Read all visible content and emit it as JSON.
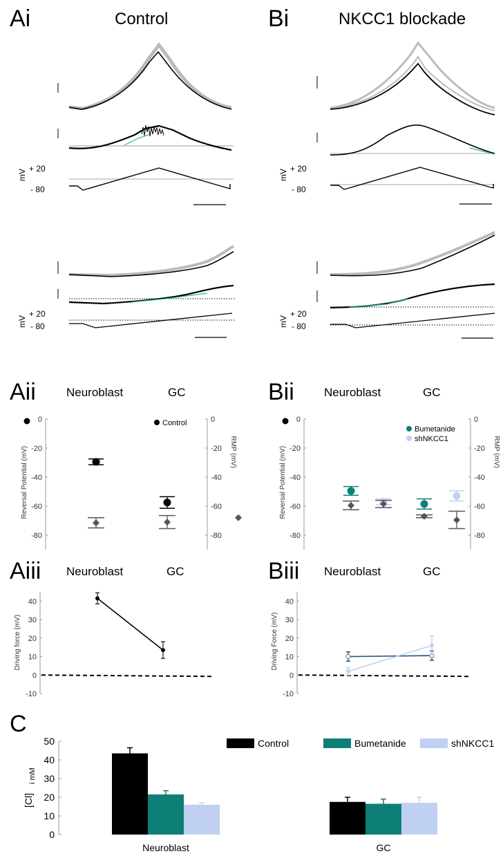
{
  "colors": {
    "control": "#000000",
    "bumetanide": "#0d7f77",
    "shnkcc1": "#bfd0f3",
    "trace_grey": "#bbbbbb",
    "rmp": "#555555",
    "teal_fit": "#2bb2a6"
  },
  "panels": {
    "Ai": {
      "label": "Ai",
      "title": "Control"
    },
    "Bi": {
      "label": "Bi",
      "title": "NKCC1 blockade"
    },
    "Aii": {
      "label": "Aii",
      "left": "Neuroblast",
      "right": "GC"
    },
    "Bii": {
      "label": "Bii",
      "left": "Neuroblast",
      "right": "GC"
    },
    "Aiii": {
      "label": "Aiii",
      "left": "Neuroblast",
      "right": "GC"
    },
    "Biii": {
      "label": "Biii",
      "left": "Neuroblast",
      "right": "GC"
    },
    "C": {
      "label": "C"
    }
  },
  "ramp_labels": {
    "axis": "mV",
    "top": "+ 20",
    "bottom": "- 80"
  },
  "chart_data": [
    {
      "type": "scatter",
      "panel": "Aii",
      "ylabel_left": "Reversal Potential  (mV)",
      "ylabel_right": "RMP (mV)",
      "ylim": [
        -90,
        0
      ],
      "yticks": [
        0,
        -20,
        -40,
        -60,
        -80
      ],
      "legend": [
        "Control"
      ],
      "series": [
        {
          "name": "Control",
          "kind": "reversal",
          "points": [
            {
              "x": "Neuroblast",
              "y": -29.5,
              "err": 2
            },
            {
              "x": "GC",
              "y": -57.5,
              "err": 4
            }
          ]
        },
        {
          "name": "RMP",
          "kind": "rmp",
          "points": [
            {
              "x": "Neuroblast",
              "y": -71.5,
              "err": 3.5
            },
            {
              "x": "GC",
              "y": -71,
              "err": 4.5
            }
          ]
        }
      ]
    },
    {
      "type": "scatter",
      "panel": "Bii",
      "ylabel_left": "Reversal Potential  (mV)",
      "ylabel_right": "RMP (mV)",
      "ylim": [
        -90,
        0
      ],
      "yticks": [
        0,
        -20,
        -40,
        -60,
        -80
      ],
      "legend": [
        "Bumetanide",
        "shNKCC1"
      ],
      "series": [
        {
          "name": "Bumetanide",
          "kind": "reversal",
          "points": [
            {
              "x": "Neuroblast",
              "y": -49.5,
              "err": 3
            },
            {
              "x": "GC",
              "y": -58.5,
              "err": 3.5
            }
          ]
        },
        {
          "name": "shNKCC1",
          "kind": "reversal",
          "points": [
            {
              "x": "Neuroblast",
              "y": -57,
              "err": 2
            },
            {
              "x": "GC",
              "y": -53,
              "err": 3.5
            }
          ]
        },
        {
          "name": "RMP Bumetanide",
          "kind": "rmp",
          "points": [
            {
              "x": "Neuroblast",
              "y": -59.5,
              "err": 3
            },
            {
              "x": "GC",
              "y": -67,
              "err": 1
            }
          ]
        },
        {
          "name": "RMP shNKCC1",
          "kind": "rmp",
          "points": [
            {
              "x": "Neuroblast",
              "y": -58.5,
              "err": 2.5
            },
            {
              "x": "GC",
              "y": -69.5,
              "err": 6
            }
          ]
        }
      ]
    },
    {
      "type": "line",
      "panel": "Aiii",
      "ylabel": "Driving force (mV)",
      "ylim": [
        -10,
        45
      ],
      "yticks": [
        40,
        30,
        20,
        10,
        0,
        -10
      ],
      "series": [
        {
          "name": "Control",
          "values": [
            41.5,
            13.5
          ],
          "err": [
            3,
            4.5
          ]
        }
      ]
    },
    {
      "type": "line",
      "panel": "Biii",
      "ylabel": "Driving Force (mV)",
      "ylim": [
        -10,
        45
      ],
      "yticks": [
        40,
        30,
        20,
        10,
        0,
        -10
      ],
      "series": [
        {
          "name": "Bumetanide",
          "values": [
            10,
            10.5
          ],
          "err": [
            2.5,
            2.5
          ]
        },
        {
          "name": "shNKCC1",
          "values": [
            2,
            16
          ],
          "err": [
            2,
            5
          ]
        }
      ]
    },
    {
      "type": "bar",
      "panel": "C",
      "ylabel": "[Cl]",
      "ylabel_sub": "i mM",
      "categories": [
        "Neuroblast",
        "GC"
      ],
      "ylim": [
        0,
        50
      ],
      "yticks": [
        0,
        10,
        20,
        30,
        40,
        50
      ],
      "legend_placement": "top-right",
      "series": [
        {
          "name": "Control",
          "values": [
            43.5,
            17.5
          ],
          "err": [
            3,
            2.5
          ]
        },
        {
          "name": "Bumetanide",
          "values": [
            21.5,
            16.5
          ],
          "err": [
            2,
            2.5
          ]
        },
        {
          "name": "shNKCC1",
          "values": [
            16,
            17
          ],
          "err": [
            1,
            3
          ]
        }
      ]
    }
  ]
}
